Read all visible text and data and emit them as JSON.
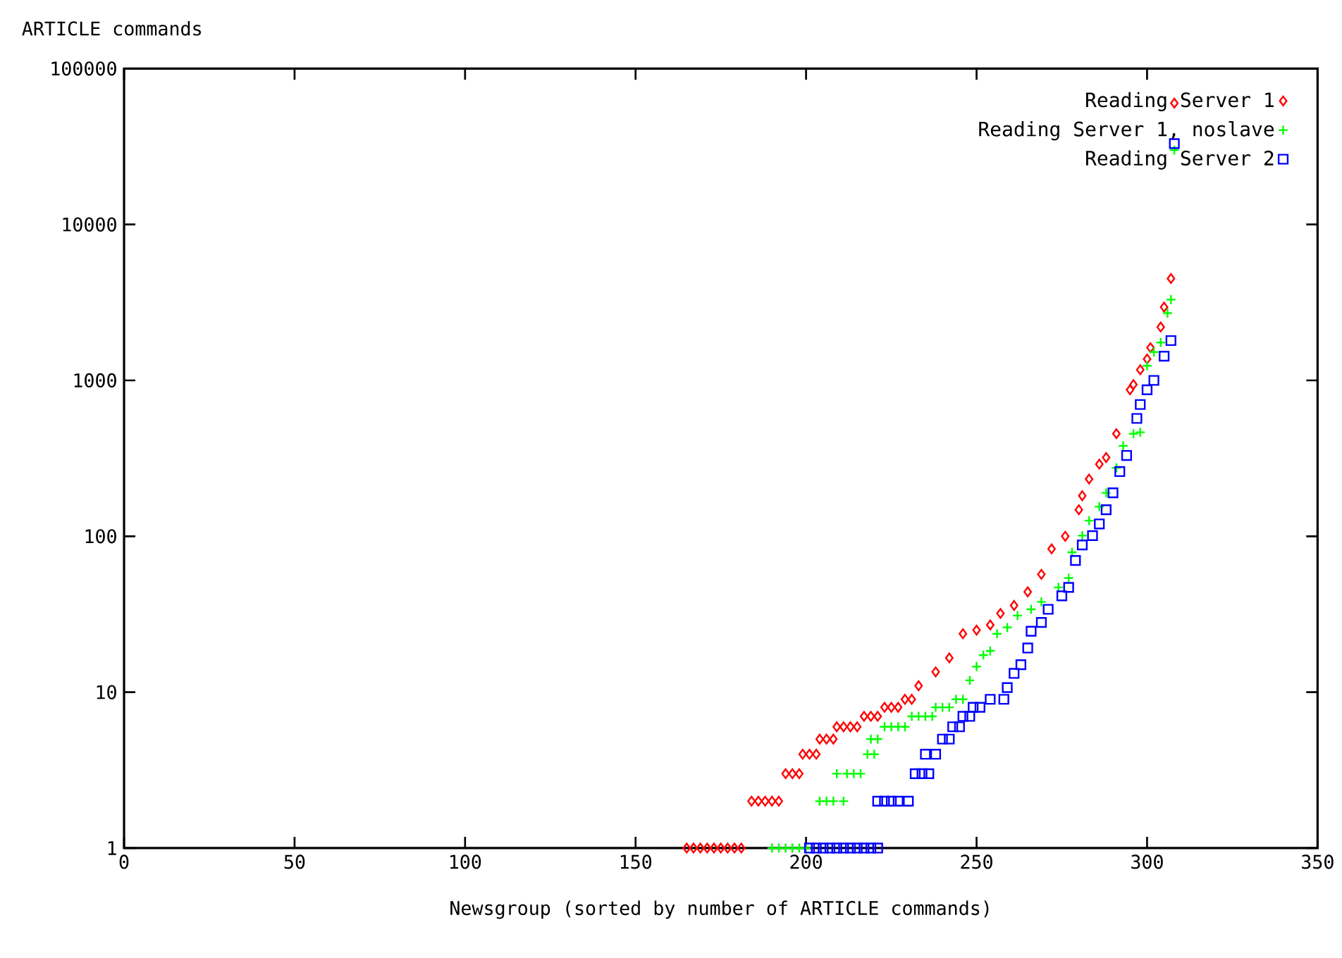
{
  "chart_data": {
    "type": "scatter",
    "xlabel": "Newsgroup (sorted by number of ARTICLE commands)",
    "ylabel": "ARTICLE commands",
    "log": "y",
    "xlim": [
      0,
      350
    ],
    "ylim": [
      1,
      100000
    ],
    "xticks": [
      0,
      50,
      100,
      150,
      200,
      250,
      300,
      350
    ],
    "yticks": [
      1,
      10,
      100,
      1000,
      10000,
      100000
    ],
    "legend": "top right",
    "grid": false,
    "series": [
      {
        "name": "Reading Server 1",
        "color": "#ff0000",
        "marker": "diamond",
        "x": [
          165,
          167,
          169,
          171,
          173,
          175,
          177,
          179,
          181,
          184,
          186,
          188,
          190,
          192,
          194,
          196,
          198,
          199,
          201,
          203,
          204,
          206,
          208,
          209,
          211,
          213,
          215,
          217,
          219,
          221,
          223,
          225,
          227,
          229,
          231,
          233,
          238,
          242,
          246,
          250,
          254,
          257,
          261,
          265,
          269,
          272,
          276,
          280,
          281,
          283,
          286,
          288,
          291,
          295,
          296,
          298,
          300,
          301,
          304,
          305,
          307,
          308
        ],
        "values": [
          1,
          1,
          1,
          1,
          1,
          1,
          1,
          1,
          1,
          2,
          2,
          2,
          2,
          2,
          3,
          3,
          3,
          4,
          4,
          4,
          5,
          5,
          5,
          6,
          6,
          6,
          6,
          7,
          7,
          7,
          8,
          8,
          8,
          9,
          9,
          11,
          13.5,
          16.6,
          23.7,
          25,
          27,
          32,
          36,
          44,
          57,
          83,
          100,
          148,
          182,
          233,
          290,
          320,
          455,
          870,
          940,
          1170,
          1370,
          1620,
          2200,
          2950,
          4500,
          60000
        ]
      },
      {
        "name": "Reading Server 1, noslave",
        "color": "#00ff00",
        "marker": "cross",
        "x": [
          190,
          192,
          194,
          196,
          198,
          200,
          204,
          206,
          208,
          211,
          209,
          212,
          214,
          216,
          218,
          220,
          219,
          221,
          223,
          225,
          227,
          229,
          231,
          233,
          235,
          237,
          238,
          240,
          242,
          244,
          246,
          248,
          250,
          252,
          254,
          256,
          259,
          262,
          266,
          269,
          274,
          277,
          278,
          281,
          283,
          286,
          288,
          291,
          293,
          296,
          298,
          300,
          302,
          304,
          306,
          307,
          308
        ],
        "values": [
          1,
          1,
          1,
          1,
          1,
          1,
          2,
          2,
          2,
          2,
          3,
          3,
          3,
          3,
          4,
          4,
          5,
          5,
          6,
          6,
          6,
          6,
          7,
          7,
          7,
          7,
          8,
          8,
          8,
          9,
          9,
          11.9,
          14.6,
          17.3,
          18.4,
          23.7,
          26,
          31,
          34,
          38,
          47,
          54,
          79,
          101,
          126,
          155,
          190,
          275,
          380,
          455,
          465,
          1240,
          1520,
          1750,
          2700,
          3300,
          30000
        ]
      },
      {
        "name": "Reading Server 2",
        "color": "#0000ff",
        "marker": "square",
        "x": [
          201,
          203,
          205,
          207,
          209,
          211,
          213,
          215,
          217,
          219,
          221,
          221,
          223,
          225,
          227,
          230,
          232,
          234,
          236,
          235,
          238,
          240,
          242,
          243,
          245,
          246,
          248,
          249,
          251,
          254,
          258,
          259,
          261,
          263,
          265,
          266,
          269,
          271,
          275,
          277,
          279,
          281,
          284,
          286,
          288,
          290,
          292,
          294,
          297,
          298,
          300,
          302,
          305,
          307,
          308
        ],
        "values": [
          1,
          1,
          1,
          1,
          1,
          1,
          1,
          1,
          1,
          1,
          1,
          2,
          2,
          2,
          2,
          2,
          3,
          3,
          3,
          4,
          4,
          5,
          5,
          6,
          6,
          7,
          7,
          8,
          8,
          9,
          9,
          10.7,
          13.2,
          15,
          19.2,
          24.6,
          28,
          34,
          41.5,
          47,
          70,
          88,
          101,
          120,
          148,
          190,
          260,
          330,
          570,
          700,
          870,
          1000,
          1430,
          1800,
          33000
        ]
      }
    ]
  }
}
